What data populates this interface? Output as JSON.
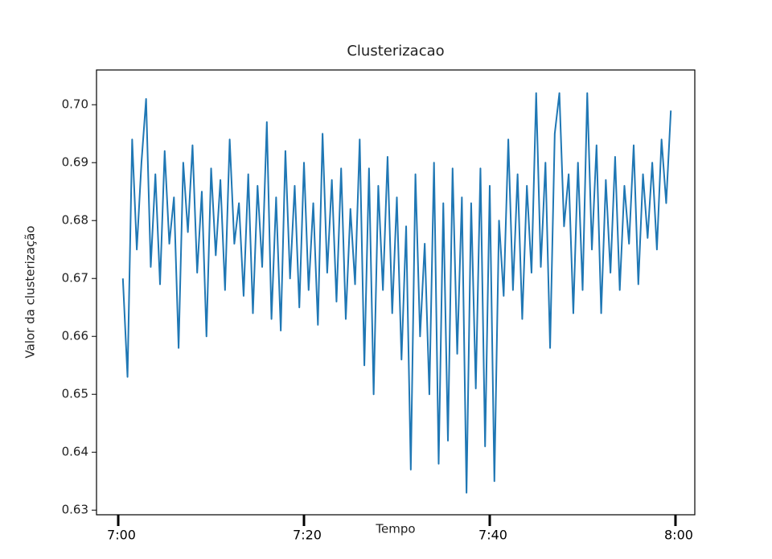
{
  "chart_data": {
    "type": "line",
    "title": "Clusterizacao",
    "x_label": "Tempo",
    "y_label": "Valor da clusterização",
    "color": "#1f77b4",
    "x": [
      420.5,
      421,
      421.5,
      422,
      422.5,
      423,
      423.5,
      424,
      424.5,
      425,
      425.5,
      426,
      426.5,
      427,
      427.5,
      428,
      428.5,
      429,
      429.5,
      430,
      430.5,
      431,
      431.5,
      432,
      432.5,
      433,
      433.5,
      434,
      434.5,
      435,
      435.5,
      436,
      436.5,
      437,
      437.5,
      438,
      438.5,
      439,
      439.5,
      440,
      440.5,
      441,
      441.5,
      442,
      442.5,
      443,
      443.5,
      444,
      444.5,
      445,
      445.5,
      446,
      446.5,
      447,
      447.5,
      448,
      448.5,
      449,
      449.5,
      450,
      450.5,
      451,
      451.5,
      452,
      452.5,
      453,
      453.5,
      454,
      454.5,
      455,
      455.5,
      456,
      456.5,
      457,
      457.5,
      458,
      458.5,
      459,
      459.5,
      460,
      460.5,
      461,
      461.5,
      462,
      462.5,
      463,
      463.5,
      464,
      464.5,
      465,
      465.5,
      466,
      466.5,
      467,
      467.5,
      468,
      468.5,
      469,
      469.5,
      470,
      470.5,
      471,
      471.5,
      472,
      472.5,
      473,
      473.5,
      474,
      474.5,
      475,
      475.5,
      476,
      476.5,
      477,
      477.5,
      478,
      478.5,
      479,
      479.5
    ],
    "values": [
      0.67,
      0.653,
      0.694,
      0.675,
      0.69,
      0.701,
      0.672,
      0.688,
      0.669,
      0.692,
      0.676,
      0.684,
      0.658,
      0.69,
      0.678,
      0.693,
      0.671,
      0.685,
      0.66,
      0.689,
      0.674,
      0.687,
      0.668,
      0.694,
      0.676,
      0.683,
      0.667,
      0.688,
      0.664,
      0.686,
      0.672,
      0.697,
      0.663,
      0.684,
      0.661,
      0.692,
      0.67,
      0.686,
      0.665,
      0.69,
      0.668,
      0.683,
      0.662,
      0.695,
      0.671,
      0.687,
      0.666,
      0.689,
      0.663,
      0.682,
      0.669,
      0.694,
      0.655,
      0.689,
      0.65,
      0.686,
      0.668,
      0.691,
      0.664,
      0.684,
      0.656,
      0.679,
      0.637,
      0.688,
      0.66,
      0.676,
      0.65,
      0.69,
      0.638,
      0.683,
      0.642,
      0.689,
      0.657,
      0.684,
      0.633,
      0.683,
      0.651,
      0.689,
      0.641,
      0.686,
      0.635,
      0.68,
      0.667,
      0.694,
      0.668,
      0.688,
      0.663,
      0.686,
      0.671,
      0.702,
      0.672,
      0.69,
      0.658,
      0.695,
      0.702,
      0.679,
      0.688,
      0.664,
      0.69,
      0.668,
      0.702,
      0.675,
      0.693,
      0.664,
      0.687,
      0.671,
      0.691,
      0.668,
      0.686,
      0.676,
      0.693,
      0.669,
      0.688,
      0.677,
      0.69,
      0.675,
      0.694,
      0.683,
      0.699
    ],
    "xlim": [
      417.66,
      482.08
    ],
    "xticks": [
      {
        "value": 420,
        "label": "7:00"
      },
      {
        "value": 440,
        "label": "7:20"
      },
      {
        "value": 460,
        "label": "7:40"
      },
      {
        "value": 480,
        "label": "8:00"
      }
    ],
    "ylim": [
      0.6292,
      0.706
    ],
    "yticks": [
      0.63,
      0.64,
      0.65,
      0.66,
      0.67,
      0.68,
      0.69,
      {
        "value": 0.7,
        "label": "0.70"
      }
    ]
  }
}
